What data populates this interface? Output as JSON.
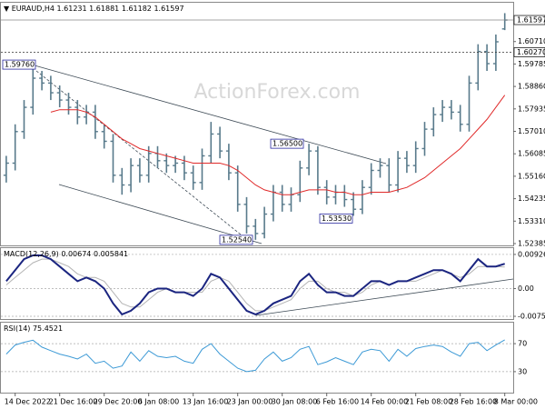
{
  "chart_data": [
    {
      "type": "ohlc",
      "title": "EURAUD,H4",
      "watermark": "ActionForex.com",
      "categories": [
        null,
        "14 Dec 2022",
        null,
        null,
        null,
        null,
        "21 Dec 16:00",
        null,
        null,
        null,
        null,
        "29 Dec 20:00",
        null,
        null,
        null,
        null,
        "6 Jan 08:00",
        null,
        null,
        null,
        null,
        "13 Jan 16:00",
        null,
        null,
        null,
        null,
        "23 Jan 00:00",
        null,
        null,
        null,
        null,
        "30 Jan 08:00",
        null,
        null,
        null,
        null,
        "6 Feb 16:00",
        null,
        null,
        null,
        null,
        "14 Feb 00:00",
        null,
        null,
        null,
        null,
        "21 Feb 08:00",
        null,
        null,
        null,
        null,
        "28 Feb 16:00",
        null,
        null,
        null,
        null,
        "8 Mar 00:00"
      ],
      "open": [
        1.552,
        1.557,
        1.57,
        1.58,
        1.592,
        1.59,
        1.586,
        1.583,
        1.58,
        1.576,
        1.578,
        1.57,
        1.566,
        1.552,
        1.548,
        1.556,
        1.552,
        1.561,
        1.558,
        1.556,
        1.557,
        1.553,
        1.549,
        1.56,
        1.569,
        1.562,
        1.553,
        1.54,
        1.531,
        1.528,
        1.536,
        1.545,
        1.54,
        1.544,
        1.555,
        1.562,
        1.547,
        1.543,
        1.545,
        1.542,
        1.538,
        1.547,
        1.554,
        1.556,
        1.548,
        1.559,
        1.556,
        1.563,
        1.571,
        1.577,
        1.58,
        1.578,
        1.573,
        1.59,
        1.603,
        1.598,
        1.61231
      ],
      "high": [
        1.56,
        1.573,
        1.583,
        1.5976,
        1.595,
        1.593,
        1.589,
        1.586,
        1.583,
        1.581,
        1.581,
        1.573,
        1.569,
        1.555,
        1.559,
        1.559,
        1.564,
        1.564,
        1.561,
        1.56,
        1.56,
        1.556,
        1.563,
        1.574,
        1.572,
        1.565,
        1.556,
        1.543,
        1.534,
        1.539,
        1.548,
        1.548,
        1.547,
        1.558,
        1.565,
        1.564,
        1.55,
        1.548,
        1.548,
        1.545,
        1.55,
        1.557,
        1.559,
        1.559,
        1.562,
        1.562,
        1.566,
        1.574,
        1.58,
        1.583,
        1.583,
        1.581,
        1.593,
        1.606,
        1.606,
        1.61,
        1.61881
      ],
      "low": [
        1.549,
        1.554,
        1.567,
        1.577,
        1.587,
        1.583,
        1.58,
        1.577,
        1.573,
        1.573,
        1.567,
        1.563,
        1.549,
        1.544,
        1.545,
        1.549,
        1.549,
        1.555,
        1.553,
        1.553,
        1.55,
        1.546,
        1.546,
        1.557,
        1.559,
        1.55,
        1.537,
        1.528,
        1.5254,
        1.526,
        1.533,
        1.537,
        1.537,
        1.541,
        1.552,
        1.544,
        1.54,
        1.54,
        1.539,
        1.5353,
        1.536,
        1.544,
        1.551,
        1.545,
        1.545,
        1.553,
        1.553,
        1.56,
        1.568,
        1.574,
        1.575,
        1.57,
        1.57,
        1.587,
        1.595,
        1.595,
        1.61182
      ],
      "close": [
        1.557,
        1.57,
        1.58,
        1.592,
        1.59,
        1.586,
        1.583,
        1.58,
        1.576,
        1.578,
        1.57,
        1.566,
        1.552,
        1.548,
        1.556,
        1.552,
        1.561,
        1.558,
        1.556,
        1.557,
        1.553,
        1.549,
        1.56,
        1.569,
        1.562,
        1.553,
        1.54,
        1.531,
        1.528,
        1.536,
        1.545,
        1.54,
        1.544,
        1.555,
        1.562,
        1.547,
        1.543,
        1.545,
        1.542,
        1.538,
        1.547,
        1.554,
        1.556,
        1.548,
        1.559,
        1.556,
        1.563,
        1.571,
        1.577,
        1.58,
        1.578,
        1.573,
        1.59,
        1.603,
        1.598,
        1.607,
        1.61597
      ],
      "color": "#587a8b",
      "ma": {
        "color": "#e02a2a",
        "values": [
          null,
          null,
          null,
          null,
          null,
          1.578,
          1.579,
          1.579,
          1.579,
          1.578,
          1.576,
          1.573,
          1.57,
          1.567,
          1.565,
          1.563,
          1.562,
          1.561,
          1.56,
          1.559,
          1.558,
          1.557,
          1.557,
          1.557,
          1.557,
          1.556,
          1.554,
          1.551,
          1.548,
          1.546,
          1.545,
          1.544,
          1.544,
          1.545,
          1.546,
          1.546,
          1.546,
          1.545,
          1.545,
          1.544,
          1.544,
          1.545,
          1.545,
          1.545,
          1.546,
          1.547,
          1.549,
          1.551,
          1.554,
          1.557,
          1.56,
          1.563,
          1.567,
          1.571,
          1.575,
          1.58,
          1.585
        ]
      },
      "ylim": [
        1.5231,
        1.6231
      ],
      "yticks": [
        {
          "value": 1.52385,
          "label": "1.52385"
        },
        {
          "value": 1.5331,
          "label": "1.53310"
        },
        {
          "value": 1.54235,
          "label": "1.54235"
        },
        {
          "value": 1.5516,
          "label": "1.55160"
        },
        {
          "value": 1.56085,
          "label": "1.56085"
        },
        {
          "value": 1.5701,
          "label": "1.57010"
        },
        {
          "value": 1.57935,
          "label": "1.57935"
        },
        {
          "value": 1.5886,
          "label": "1.58860"
        },
        {
          "value": 1.59785,
          "label": "1.59785"
        },
        {
          "value": 1.6071,
          "label": "1.60710"
        }
      ],
      "levels": [
        {
          "value": 1.6027,
          "label": "1.60270"
        }
      ],
      "annotations": [
        {
          "value": 1.5976,
          "label": "1.59760"
        },
        {
          "value": 1.565,
          "label": "1.56500"
        },
        {
          "value": 1.5353,
          "label": "1.53530"
        },
        {
          "value": 1.5254,
          "label": "1.52540"
        }
      ]
    },
    {
      "type": "macd",
      "title": "MACD(12,26,9)",
      "series": [
        {
          "color": "#1b2580",
          "values": [
            0.002,
            0.005,
            0.008,
            0.009,
            0.009,
            0.008,
            0.006,
            0.004,
            0.002,
            0.003,
            0.002,
            0.0,
            -0.004,
            -0.007,
            -0.006,
            -0.004,
            -0.001,
            0.0,
            0.0,
            -0.001,
            -0.001,
            -0.002,
            0.0,
            0.004,
            0.003,
            0.0,
            -0.003,
            -0.006,
            -0.007,
            -0.006,
            -0.004,
            -0.003,
            -0.002,
            0.002,
            0.004,
            0.001,
            -0.001,
            -0.001,
            -0.002,
            -0.002,
            0.0,
            0.002,
            0.002,
            0.001,
            0.002,
            0.002,
            0.003,
            0.004,
            0.005,
            0.005,
            0.004,
            0.002,
            0.005,
            0.008,
            0.006,
            0.006,
            0.00674
          ]
        },
        {
          "color": "#b4b4b4",
          "values": [
            0.001,
            0.003,
            0.005,
            0.007,
            0.008,
            0.008,
            0.007,
            0.006,
            0.004,
            0.003,
            0.003,
            0.002,
            -0.001,
            -0.004,
            -0.005,
            -0.005,
            -0.003,
            -0.001,
            0.0,
            -0.001,
            -0.001,
            -0.001,
            -0.001,
            0.002,
            0.003,
            0.002,
            -0.001,
            -0.004,
            -0.006,
            -0.006,
            -0.005,
            -0.004,
            -0.003,
            0.0,
            0.002,
            0.002,
            0.0,
            -0.001,
            -0.001,
            -0.002,
            -0.001,
            0.001,
            0.002,
            0.001,
            0.002,
            0.002,
            0.002,
            0.003,
            0.004,
            0.005,
            0.004,
            0.003,
            0.004,
            0.006,
            0.006,
            0.006,
            0.005841
          ]
        }
      ],
      "ylim": [
        -0.00825,
        0.01097
      ],
      "yticks": [
        0.009263,
        {
          "value": 0,
          "label": "0.00"
        },
        -0.007517
      ]
    },
    {
      "type": "line",
      "title": "RSI(14)",
      "series": [
        {
          "color": "#3d9ad6",
          "values": [
            55,
            68,
            72,
            75,
            65,
            60,
            55,
            52,
            48,
            55,
            42,
            45,
            35,
            38,
            58,
            45,
            60,
            52,
            50,
            52,
            45,
            42,
            62,
            70,
            55,
            45,
            35,
            30,
            32,
            48,
            58,
            45,
            50,
            62,
            66,
            40,
            44,
            50,
            45,
            40,
            58,
            62,
            60,
            45,
            62,
            52,
            63,
            66,
            68,
            66,
            58,
            52,
            70,
            72,
            60,
            68,
            75.4521
          ]
        }
      ],
      "ylim": [
        0,
        100
      ],
      "yticks": [
        70,
        30
      ]
    }
  ]
}
